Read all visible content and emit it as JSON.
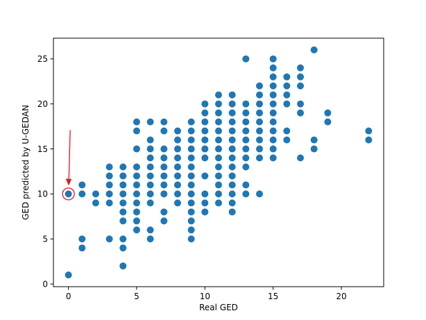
{
  "chart_data": {
    "type": "scatter",
    "title": "",
    "xlabel": "Real GED",
    "ylabel": "GED predicted by U-GEDAN",
    "xlim": [
      -1.1,
      23.1
    ],
    "ylim": [
      -0.3,
      27.3
    ],
    "xticks": [
      0,
      5,
      10,
      15,
      20
    ],
    "yticks": [
      0,
      5,
      10,
      15,
      20,
      25
    ],
    "grid": false,
    "colors": {
      "points": "#1f77b4",
      "annotation": "#e8141a"
    },
    "points": [
      [
        0,
        1
      ],
      [
        0,
        10
      ],
      [
        1,
        4
      ],
      [
        1,
        5
      ],
      [
        1,
        10
      ],
      [
        1,
        11
      ],
      [
        2,
        9
      ],
      [
        2,
        10
      ],
      [
        3,
        5
      ],
      [
        3,
        9
      ],
      [
        3,
        10
      ],
      [
        3,
        11
      ],
      [
        3,
        12
      ],
      [
        3,
        13
      ],
      [
        4,
        2
      ],
      [
        4,
        4
      ],
      [
        4,
        5
      ],
      [
        4,
        7
      ],
      [
        4,
        8
      ],
      [
        4,
        9
      ],
      [
        4,
        10
      ],
      [
        4,
        11
      ],
      [
        4,
        12
      ],
      [
        4,
        13
      ],
      [
        5,
        6
      ],
      [
        5,
        7
      ],
      [
        5,
        8
      ],
      [
        5,
        9
      ],
      [
        5,
        10
      ],
      [
        5,
        11
      ],
      [
        5,
        12
      ],
      [
        5,
        13
      ],
      [
        5,
        15
      ],
      [
        5,
        17
      ],
      [
        5,
        18
      ],
      [
        6,
        5
      ],
      [
        6,
        6
      ],
      [
        6,
        9
      ],
      [
        6,
        10
      ],
      [
        6,
        11
      ],
      [
        6,
        12
      ],
      [
        6,
        13
      ],
      [
        6,
        14
      ],
      [
        6,
        15
      ],
      [
        6,
        16
      ],
      [
        6,
        18
      ],
      [
        7,
        7
      ],
      [
        7,
        8
      ],
      [
        7,
        10
      ],
      [
        7,
        11
      ],
      [
        7,
        12
      ],
      [
        7,
        13
      ],
      [
        7,
        14
      ],
      [
        7,
        15
      ],
      [
        7,
        17
      ],
      [
        7,
        18
      ],
      [
        8,
        9
      ],
      [
        8,
        10
      ],
      [
        8,
        11
      ],
      [
        8,
        12
      ],
      [
        8,
        13
      ],
      [
        8,
        14
      ],
      [
        8,
        15
      ],
      [
        8,
        16
      ],
      [
        8,
        17
      ],
      [
        9,
        5
      ],
      [
        9,
        6
      ],
      [
        9,
        7
      ],
      [
        9,
        8
      ],
      [
        9,
        9
      ],
      [
        9,
        10
      ],
      [
        9,
        11
      ],
      [
        9,
        12
      ],
      [
        9,
        13
      ],
      [
        9,
        14
      ],
      [
        9,
        15
      ],
      [
        9,
        16
      ],
      [
        9,
        17
      ],
      [
        9,
        18
      ],
      [
        10,
        8
      ],
      [
        10,
        9
      ],
      [
        10,
        10
      ],
      [
        10,
        12
      ],
      [
        10,
        14
      ],
      [
        10,
        15
      ],
      [
        10,
        16
      ],
      [
        10,
        17
      ],
      [
        10,
        18
      ],
      [
        10,
        19
      ],
      [
        10,
        20
      ],
      [
        11,
        9
      ],
      [
        11,
        10
      ],
      [
        11,
        11
      ],
      [
        11,
        12
      ],
      [
        11,
        13
      ],
      [
        11,
        14
      ],
      [
        11,
        15
      ],
      [
        11,
        16
      ],
      [
        11,
        17
      ],
      [
        11,
        18
      ],
      [
        11,
        19
      ],
      [
        11,
        20
      ],
      [
        11,
        21
      ],
      [
        12,
        8
      ],
      [
        12,
        9
      ],
      [
        12,
        10
      ],
      [
        12,
        11
      ],
      [
        12,
        12
      ],
      [
        12,
        13
      ],
      [
        12,
        14
      ],
      [
        12,
        15
      ],
      [
        12,
        16
      ],
      [
        12,
        17
      ],
      [
        12,
        18
      ],
      [
        12,
        19
      ],
      [
        12,
        20
      ],
      [
        12,
        21
      ],
      [
        13,
        10
      ],
      [
        13,
        11
      ],
      [
        13,
        13
      ],
      [
        13,
        14
      ],
      [
        13,
        15
      ],
      [
        13,
        16
      ],
      [
        13,
        17
      ],
      [
        13,
        18
      ],
      [
        13,
        19
      ],
      [
        13,
        20
      ],
      [
        13,
        25
      ],
      [
        14,
        10
      ],
      [
        14,
        14
      ],
      [
        14,
        15
      ],
      [
        14,
        16
      ],
      [
        14,
        17
      ],
      [
        14,
        18
      ],
      [
        14,
        19
      ],
      [
        14,
        20
      ],
      [
        14,
        21
      ],
      [
        14,
        22
      ],
      [
        15,
        14
      ],
      [
        15,
        15
      ],
      [
        15,
        16
      ],
      [
        15,
        17
      ],
      [
        15,
        18
      ],
      [
        15,
        19
      ],
      [
        15,
        20
      ],
      [
        15,
        21
      ],
      [
        15,
        22
      ],
      [
        15,
        23
      ],
      [
        15,
        24
      ],
      [
        15,
        25
      ],
      [
        16,
        16
      ],
      [
        16,
        17
      ],
      [
        16,
        20
      ],
      [
        16,
        21
      ],
      [
        16,
        22
      ],
      [
        16,
        23
      ],
      [
        17,
        14
      ],
      [
        17,
        19
      ],
      [
        17,
        20
      ],
      [
        17,
        22
      ],
      [
        17,
        23
      ],
      [
        17,
        24
      ],
      [
        18,
        15
      ],
      [
        18,
        16
      ],
      [
        18,
        26
      ],
      [
        19,
        18
      ],
      [
        19,
        19
      ],
      [
        22,
        16
      ],
      [
        22,
        17
      ]
    ],
    "annotation": {
      "highlighted_point": [
        0,
        10
      ]
    }
  }
}
